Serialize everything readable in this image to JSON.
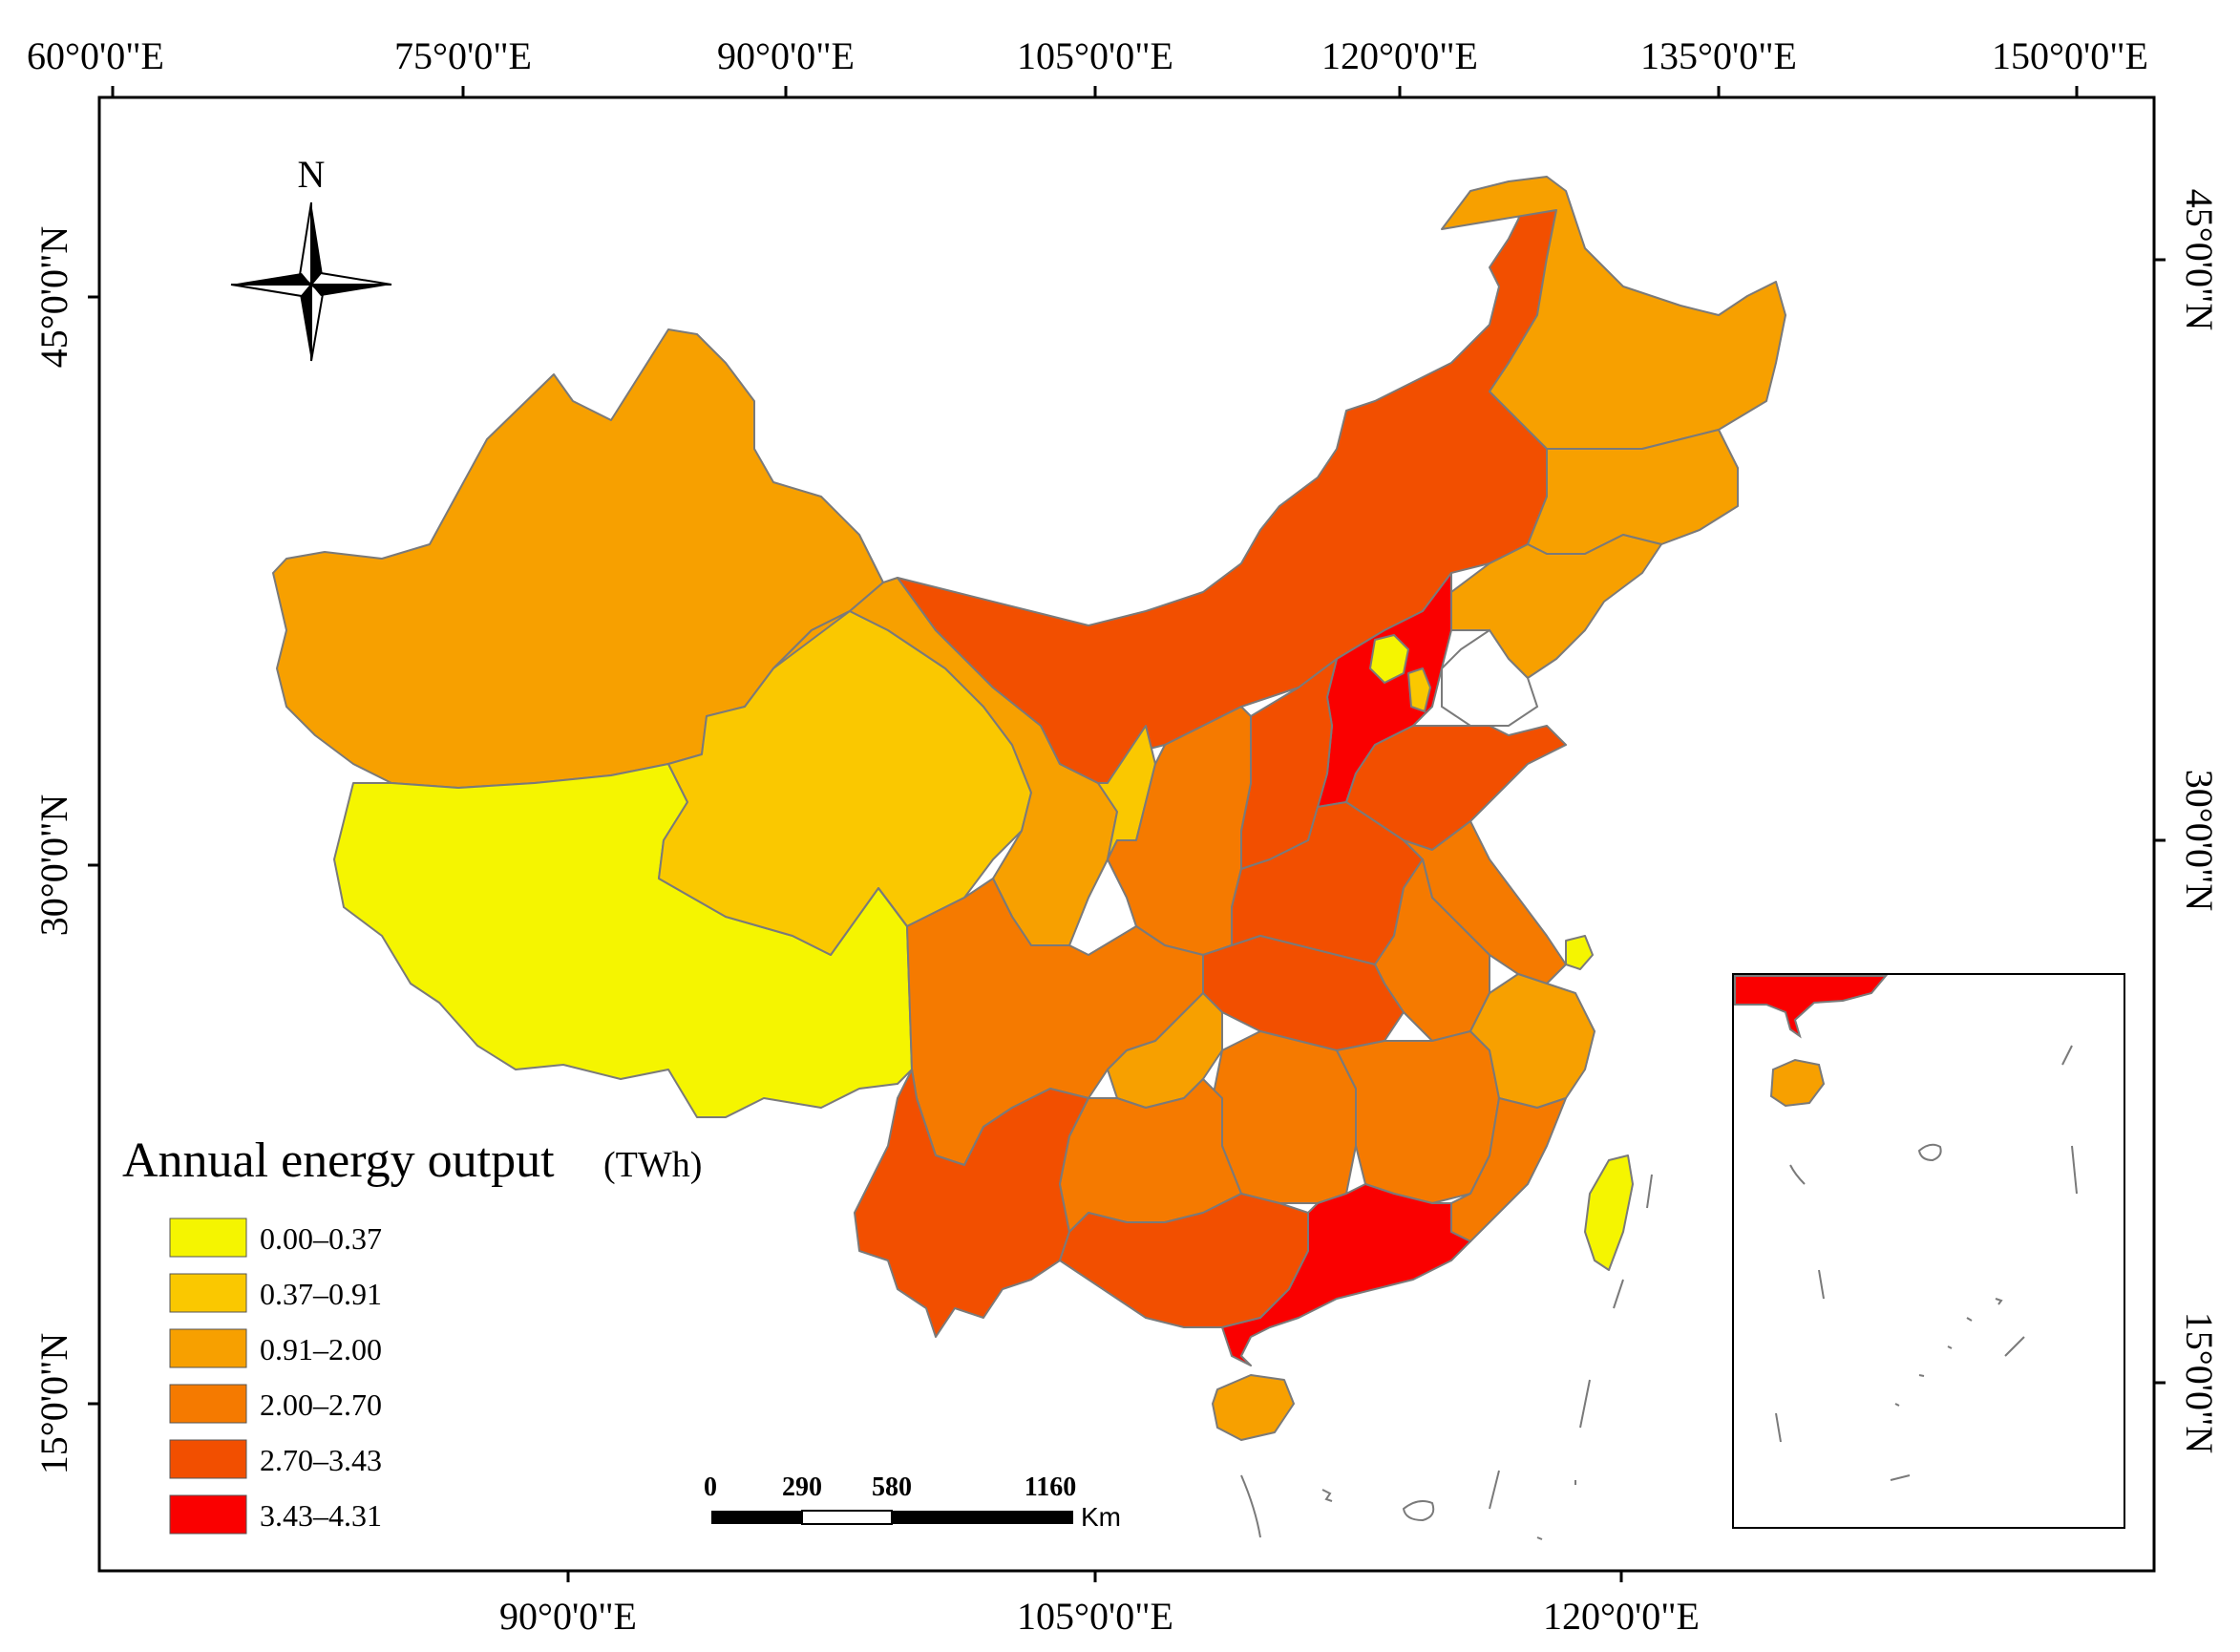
{
  "axes": {
    "top_ticks": [
      "60°0'0\"E",
      "75°0'0\"E",
      "90°0'0\"E",
      "105°0'0\"E",
      "120°0'0\"E",
      "135°0'0\"E",
      "150°0'0\"E"
    ],
    "bottom_ticks": [
      "90°0'0\"E",
      "105°0'0\"E",
      "120°0'0\"E"
    ],
    "left_ticks": [
      "45°0'0\"N",
      "30°0'0\"N",
      "15°0'0\"N"
    ],
    "right_ticks": [
      "45°0'0\"N",
      "30°0'0\"N",
      "15°0'0\"N"
    ]
  },
  "north_arrow": {
    "label": "N",
    "icon": "north-arrow-icon"
  },
  "legend": {
    "title": "Annual energy output",
    "unit": "(TWh)",
    "classes": [
      {
        "label": "0.00–0.37",
        "color": "#f5f500"
      },
      {
        "label": "0.37–0.91",
        "color": "#fac800"
      },
      {
        "label": "0.91–2.00",
        "color": "#f7a000"
      },
      {
        "label": "2.00–2.70",
        "color": "#f57a00"
      },
      {
        "label": "2.70–3.43",
        "color": "#f24f00"
      },
      {
        "label": "3.43–4.31",
        "color": "#fa0000"
      }
    ]
  },
  "scale_bar": {
    "labels": [
      "0",
      "290",
      "580",
      "1160"
    ],
    "unit": "Km"
  },
  "colors": {
    "frame": "#000000",
    "province_border": "#7a7a7a",
    "background": "#ffffff"
  }
}
